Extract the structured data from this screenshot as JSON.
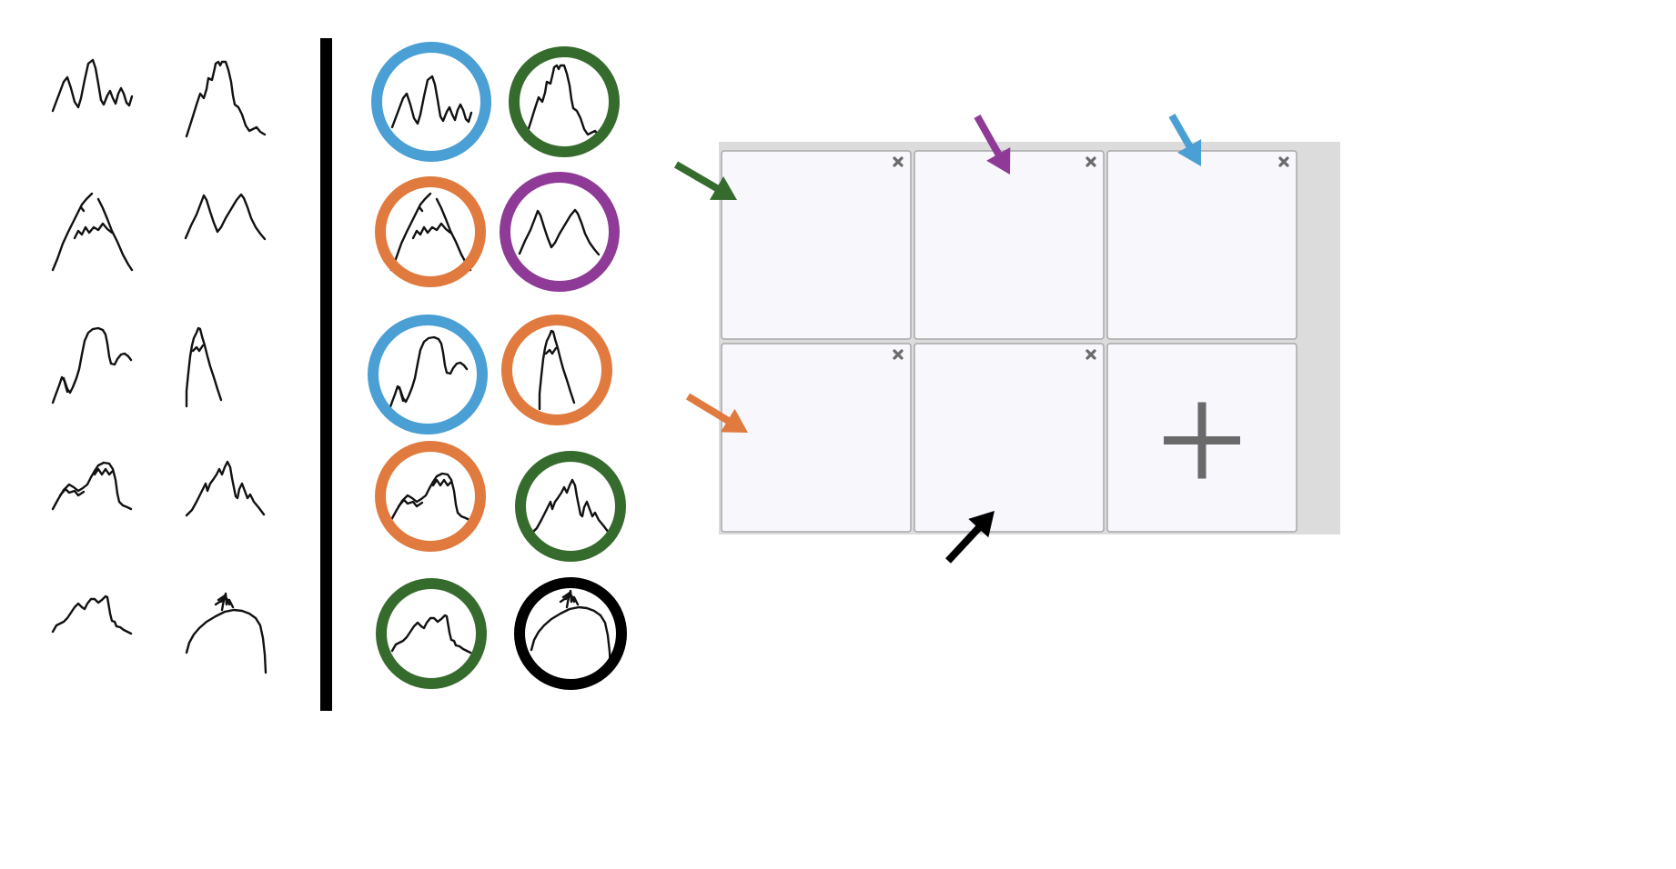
{
  "colors": {
    "blue": "#4a9fd4",
    "green": "#356b2c",
    "orange": "#e07a3e",
    "purple": "#8e3a96",
    "black": "#000000",
    "panel_background": "#dcdcdc",
    "slot_fill": "#f7f7fc",
    "slot_border": "#a8a8a8",
    "close_icon": "#6a6a6a",
    "plus_icon": "#6a6a6a"
  },
  "sketches": [
    {
      "id": "s1",
      "label_icon": "twin-peak-sketch-icon"
    },
    {
      "id": "s2",
      "label_icon": "tall-peak-sketch-icon"
    },
    {
      "id": "s3",
      "label_icon": "overlapping-peak-sketch-icon"
    },
    {
      "id": "s4",
      "label_icon": "m-shape-sketch-icon"
    },
    {
      "id": "s5",
      "label_icon": "rounded-peak-sketch-icon"
    },
    {
      "id": "s6",
      "label_icon": "narrow-spike-sketch-icon"
    },
    {
      "id": "s7",
      "label_icon": "bumpy-hill-sketch-icon"
    },
    {
      "id": "s8",
      "label_icon": "jagged-peak-sketch-icon"
    },
    {
      "id": "s9",
      "label_icon": "low-ridge-sketch-icon"
    },
    {
      "id": "s10",
      "label_icon": "dome-with-person-sketch-icon"
    }
  ],
  "clusters": [
    "blue",
    "green",
    "orange",
    "purple",
    "blue",
    "orange",
    "orange",
    "green",
    "green",
    "black"
  ],
  "grid": {
    "rows": 2,
    "columns": 3,
    "slots": [
      {
        "state": "empty",
        "close_icon": "close-icon"
      },
      {
        "state": "empty",
        "close_icon": "close-icon"
      },
      {
        "state": "empty",
        "close_icon": "close-icon"
      },
      {
        "state": "empty",
        "close_icon": "close-icon"
      },
      {
        "state": "empty",
        "close_icon": "close-icon"
      },
      {
        "state": "add",
        "icon": "plus-icon"
      }
    ]
  },
  "arrows": [
    "green",
    "purple",
    "blue",
    "orange",
    "black"
  ]
}
